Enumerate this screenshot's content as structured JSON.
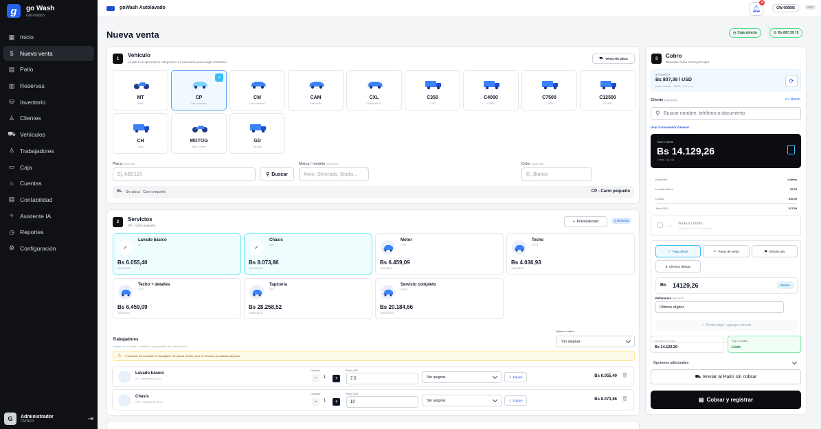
{
  "brand": {
    "name": "go Wash",
    "code": "GW-000005",
    "logo_letter": "g"
  },
  "nav": {
    "items": [
      {
        "label": "Inicio",
        "icon": "▦"
      },
      {
        "label": "Nueva venta",
        "icon": "$"
      },
      {
        "label": "Patio",
        "icon": "▤"
      },
      {
        "label": "Reservas",
        "icon": "▥"
      },
      {
        "label": "Inventario",
        "icon": "⛁"
      },
      {
        "label": "Clientes",
        "icon": "♙"
      },
      {
        "label": "Vehículos",
        "icon": "⛟"
      },
      {
        "label": "Trabajadores",
        "icon": "♙"
      },
      {
        "label": "Caja",
        "icon": "▭"
      },
      {
        "label": "Cuentas",
        "icon": "⌂"
      },
      {
        "label": "Contabilidad",
        "icon": "▤"
      },
      {
        "label": "Asistente IA",
        "icon": "✧"
      },
      {
        "label": "Reportes",
        "icon": "◷"
      },
      {
        "label": "Configuración",
        "icon": "⚙"
      }
    ]
  },
  "user": {
    "name": "Administrador",
    "role": "OWNER",
    "initial": "G"
  },
  "topbar": {
    "title": "goWash Autolavado",
    "notif_count": "4",
    "code": "GW-000005",
    "plan": "PRO"
  },
  "page": {
    "title": "Nueva venta",
    "caja_status": "Caja abierta",
    "rate_chip": "Bs 807,39 / $"
  },
  "vehicle": {
    "step": "1",
    "title": "Vehículo",
    "subtitle": "La placa es opcional; la categoría sí es necesaria para cargar el tarifario.",
    "no_plate_btn": "Venta sin placa",
    "categories": [
      {
        "code": "MT",
        "desc": "Moto"
      },
      {
        "code": "CP",
        "desc": "Carro pequeño"
      },
      {
        "code": "CM",
        "desc": "Carro mediano"
      },
      {
        "code": "CAM",
        "desc": "Camioneta"
      },
      {
        "code": "CXL",
        "desc": "Camioneta XL"
      },
      {
        "code": "C350",
        "desc": "C350"
      },
      {
        "code": "C4000",
        "desc": "C4000"
      },
      {
        "code": "C7500",
        "desc": "C7500"
      },
      {
        "code": "C12500",
        "desc": "C12500"
      },
      {
        "code": "CH",
        "desc": "Chuto"
      },
      {
        "code": "MOTOG",
        "desc": "Moto Grande"
      },
      {
        "code": "GD",
        "desc": "Gandola"
      }
    ],
    "plate_label": "Placa",
    "plate_opt": "(opcional)",
    "plate_placeholder": "Ej. ABC123",
    "search_btn": "Buscar",
    "brand_label": "Marca / modelo",
    "brand_opt": "(opcional)",
    "brand_placeholder": "Aveo, Silverado, Stralis...",
    "color_label": "Color",
    "color_opt": "(opcional)",
    "color_placeholder": "Ej. Blanco",
    "summary_left": "Sin placa · Carro pequeño",
    "summary_right": "CP - Carro pequeño"
  },
  "services": {
    "step": "2",
    "title": "Servicios",
    "subtitle": "CP - Carro pequeño",
    "custom_btn": "Personalizado",
    "count": "2 servicios",
    "items": [
      {
        "name": "Lavado básico",
        "code": "CP",
        "price": "Bs 6.055,40",
        "tarifa": "Tarifa $7,50"
      },
      {
        "name": "Chasis",
        "code": "CPC",
        "price": "Bs 8.073,86",
        "tarifa": "Tarifa $10,00"
      },
      {
        "name": "Motor",
        "code": "CPM",
        "price": "Bs 6.459,09",
        "tarifa": "Tarifa $8,00"
      },
      {
        "name": "Techo",
        "code": "CPTE",
        "price": "Bs 4.036,93",
        "tarifa": "Tarifa $5,00"
      },
      {
        "name": "Techo + detalles",
        "code": "CPTD",
        "price": "Bs 6.459,09",
        "tarifa": "Tarifa $8,00"
      },
      {
        "name": "Tapicería",
        "code": "CPT",
        "price": "Bs 28.258,52",
        "tarifa": "Tarifa $35,00"
      },
      {
        "name": "Servicio completo",
        "code": "CPCO",
        "price": "Bs 20.184,66",
        "tarifa": "Tarifa $25,00"
      }
    ],
    "workers_title": "Trabajadores",
    "workers_sub": "Asigne uno a todos o cambie el responsable de cada servicio.",
    "apply_all_label": "Aplicar a todos",
    "apply_all_value": "Sin asignar",
    "warning": "2 servicios sin comisión en trabajador. Se puede vender, pero no tendrán un cuidado asignado.",
    "rows": [
      {
        "name": "Lavado básico",
        "sub": "CP · comisión $2,00 c/u",
        "qty_label": "Cantidad",
        "qty": "1",
        "price_label": "Precio USD",
        "price": "7.5",
        "worker": "Sin asignar",
        "team": "Equipo",
        "total": "Bs 6.055,40"
      },
      {
        "name": "Chasis",
        "sub": "CPC · comisión $2,00 c/u",
        "qty_label": "Cantidad",
        "qty": "1",
        "price_label": "Precio USD",
        "price": "10",
        "worker": "Sin asignar",
        "team": "Equipo",
        "total": "Bs 8.073,86"
      }
    ]
  },
  "cobro": {
    "step": "3",
    "title": "Cobro",
    "subtitle": "Bolívares como monto principal",
    "rate_label": "Tasa BCV",
    "rate_value": "Bs 807,39 / USD",
    "rate_updated": "public. fallback · 6/5/26, 12:47 p. m.",
    "client_label": "Cliente",
    "client_opt": "(opcional)",
    "new_client": "Nuevo",
    "client_placeholder": "Buscar nombre, teléfono o documento",
    "general_consumer": "Usar Consumidor General",
    "total_label": "Total a cobrar",
    "total_value": "Bs 14.129,26",
    "total_sub": "2 items · $17,50",
    "summary": [
      {
        "label": "Resumen",
        "value": "2 items"
      },
      {
        "label": "Lavado básico",
        "value": "$7,50"
      },
      {
        "label": "Chasis",
        "value": "$10,00"
      },
      {
        "label": "Total USD",
        "value": "$17,50"
      }
    ],
    "credit_title": "Venta a crédito",
    "credit_sub": "Selecciona un cliente registrado",
    "methods": [
      "Pago Movil",
      "Punto de venta",
      "Efectivo Bs",
      "Efectivo divisas"
    ],
    "amount_currency": "Bs",
    "amount": "14129,26",
    "exact_btn": "Exacto",
    "reference_label": "Referencia",
    "reference_opt": "opcional",
    "reference_placeholder": "Últimos dígitos",
    "split_btn": "Dividir pago / agregar método",
    "applied_label": "Aplicado a la venta",
    "applied_value": "Bs 14.129,26",
    "complete_label": "Pago completo",
    "complete_value": "Listo",
    "extra_options": "Opciones adicionales",
    "send_patio": "Enviar al Patio sin cobrar",
    "charge_btn": "Cobrar y registrar"
  }
}
